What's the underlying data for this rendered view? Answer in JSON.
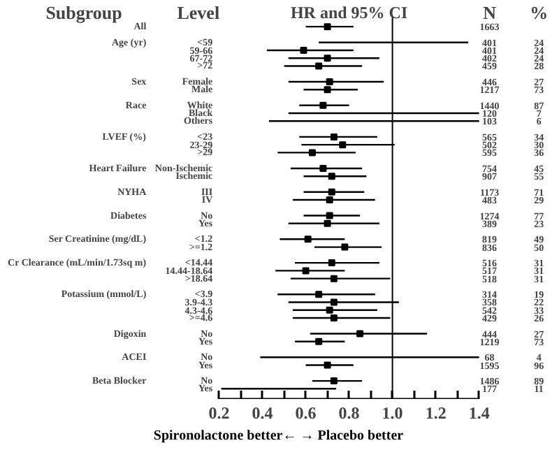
{
  "chart_data": {
    "type": "scatter",
    "orientation": "horizontal",
    "title": "HR and 95% CI",
    "xlabel": "Spironolactone better←  → Placebo better",
    "marker": "square",
    "xlim": [
      0.2,
      1.4
    ],
    "xticks": [
      0.2,
      {
        "value": 0.3,
        "label": null
      },
      0.4,
      {
        "value": 0.5,
        "label": null
      },
      0.6,
      {
        "value": 0.7,
        "label": null
      },
      0.8,
      {
        "value": 0.9,
        "label": null
      },
      {
        "value": 1.0,
        "label": "1.0"
      },
      {
        "value": 1.1,
        "label": null
      },
      1.2,
      {
        "value": 1.3,
        "label": null
      },
      1.4
    ],
    "ref_lines": [
      {
        "axis": "x",
        "value": 1.0
      }
    ],
    "categories": [
      null,
      null,
      "<59",
      "59-66",
      "67-72",
      ">72",
      null,
      "Female",
      "Male",
      null,
      "White",
      "Black",
      "Others",
      null,
      "<23",
      "23-29",
      ">29",
      null,
      "Non-Ischemic",
      "Ischemic",
      null,
      "III",
      "IV",
      null,
      "No",
      "Yes",
      null,
      "<1.2",
      ">=1.2",
      null,
      "<14.44",
      "14.44-18.64",
      ">18.64",
      null,
      "<3.9",
      "3.9-4.3",
      "4.3-4.6",
      ">=4.6",
      null,
      "No",
      "Yes",
      null,
      "No",
      "Yes",
      null,
      "No",
      "Yes"
    ],
    "series": [
      {
        "color": "#000000",
        "values": [
          0.7,
          null,
          null,
          0.59,
          0.7,
          0.66,
          null,
          0.71,
          0.7,
          null,
          0.68,
          null,
          null,
          null,
          0.73,
          0.77,
          0.63,
          null,
          0.68,
          0.72,
          null,
          0.72,
          0.71,
          null,
          0.71,
          0.7,
          null,
          0.61,
          0.78,
          null,
          0.72,
          0.6,
          0.73,
          null,
          0.66,
          0.73,
          0.71,
          0.73,
          null,
          0.85,
          0.66,
          null,
          null,
          0.7,
          null,
          0.73,
          null
        ],
        "errors": [
          [
            0.6,
            0.82
          ],
          null,
          null,
          [
            0.42,
            0.82
          ],
          [
            0.52,
            0.94
          ],
          [
            0.5,
            0.86
          ],
          null,
          [
            0.52,
            0.96
          ],
          [
            0.59,
            0.84
          ],
          null,
          [
            0.57,
            0.8
          ],
          null,
          null,
          null,
          [
            0.57,
            0.93
          ],
          [
            0.58,
            1.01
          ],
          [
            0.47,
            0.83
          ],
          null,
          [
            0.53,
            0.86
          ],
          [
            0.59,
            0.88
          ],
          null,
          [
            0.59,
            0.87
          ],
          [
            0.54,
            0.92
          ],
          null,
          [
            0.59,
            0.85
          ],
          [
            0.52,
            0.94
          ],
          null,
          [
            0.48,
            0.78
          ],
          [
            0.64,
            0.95
          ],
          null,
          [
            0.55,
            0.94
          ],
          [
            0.46,
            0.78
          ],
          [
            0.53,
            0.99
          ],
          null,
          [
            0.47,
            0.92
          ],
          [
            0.52,
            1.03
          ],
          [
            0.54,
            0.93
          ],
          [
            0.54,
            0.99
          ],
          null,
          [
            0.62,
            1.16
          ],
          [
            0.55,
            0.78
          ],
          null,
          null,
          [
            0.6,
            0.82
          ],
          null,
          [
            0.63,
            0.86
          ],
          null
        ]
      },
      {
        "type": "bar",
        "color": "#000000",
        "base": [
          null,
          null,
          0.66,
          null,
          null,
          null,
          null,
          null,
          null,
          null,
          null,
          0.52,
          0.43,
          null,
          null,
          null,
          null,
          null,
          null,
          null,
          null,
          null,
          null,
          null,
          null,
          null,
          null,
          null,
          null,
          null,
          null,
          null,
          null,
          null,
          null,
          null,
          null,
          null,
          null,
          null,
          null,
          null,
          0.39,
          null,
          null,
          null,
          0.21
        ],
        "values": [
          null,
          null,
          0.69,
          null,
          null,
          null,
          null,
          null,
          null,
          null,
          null,
          0.88,
          0.97,
          null,
          null,
          null,
          null,
          null,
          null,
          null,
          null,
          null,
          null,
          null,
          null,
          null,
          null,
          null,
          null,
          null,
          null,
          null,
          null,
          null,
          null,
          null,
          null,
          null,
          null,
          null,
          null,
          null,
          1.01,
          null,
          null,
          null,
          0.53
        ]
      }
    ],
    "annotations": [
      "Subgroup",
      "Level",
      "N",
      "%",
      "All",
      "1663",
      "Age (yr)",
      "401",
      "24",
      "401",
      "24",
      "402",
      "24",
      "459",
      "28",
      "Sex",
      "446",
      "27",
      "1217",
      "73",
      "Race",
      "1440",
      "87",
      "120",
      "7",
      "103",
      "6",
      "LVEF (%)",
      "565",
      "34",
      "502",
      "30",
      "595",
      "36",
      "Heart Failure",
      "754",
      "45",
      "907",
      "55",
      "NYHA",
      "1173",
      "71",
      "483",
      "29",
      "Diabetes",
      "1274",
      "77",
      "389",
      "23",
      "Ser Creatinine (mg/dL)",
      "819",
      "49",
      "836",
      "50",
      "Cr Clearance (mL/min/1.73sq m)",
      "516",
      "31",
      "517",
      "31",
      "518",
      "31",
      "Potassium (mmol/L)",
      "314",
      "19",
      "358",
      "22",
      "542",
      "33",
      "429",
      "26",
      "Digoxin",
      "444",
      "27",
      "1219",
      "73",
      "ACEI",
      "68",
      "4",
      "1595",
      "96",
      "Beta Blocker",
      "1486",
      "89",
      "177",
      "11"
    ]
  }
}
